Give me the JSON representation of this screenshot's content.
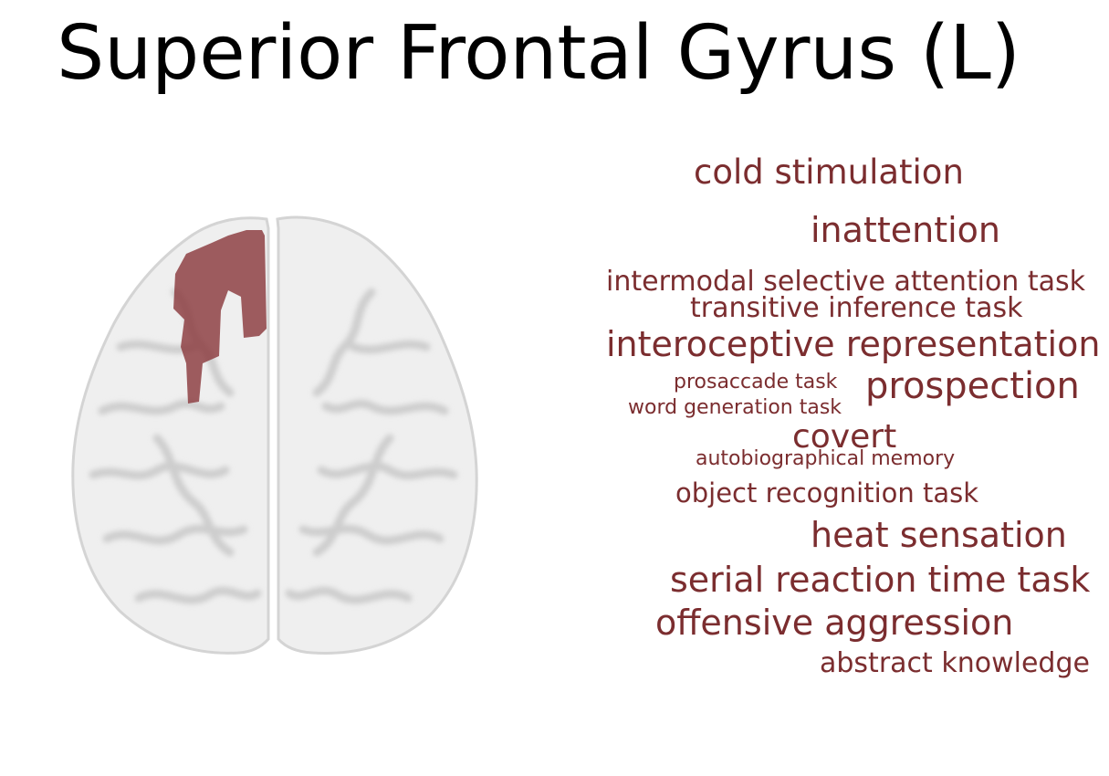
{
  "title": "Superior Frontal Gyrus (L)",
  "colors": {
    "accent": "#7b2d2f",
    "region": "#8b3a3e",
    "brain_base": "#e9e9e9"
  },
  "brain_image": {
    "view": "axial",
    "highlighted_region": "left superior frontal gyrus"
  },
  "terms": [
    {
      "text": "cold stimulation",
      "size": "large"
    },
    {
      "text": "inattention",
      "size": "large"
    },
    {
      "text": "intermodal selective attention task",
      "size": "medium"
    },
    {
      "text": "transitive inference task",
      "size": "medium"
    },
    {
      "text": "interoceptive representation",
      "size": "large"
    },
    {
      "text": "prosaccade task",
      "size": "small"
    },
    {
      "text": "prospection",
      "size": "large"
    },
    {
      "text": "word generation task",
      "size": "small"
    },
    {
      "text": "covert",
      "size": "large"
    },
    {
      "text": "autobiographical memory",
      "size": "small"
    },
    {
      "text": "object recognition task",
      "size": "medium"
    },
    {
      "text": "heat sensation",
      "size": "large"
    },
    {
      "text": "serial reaction time task",
      "size": "large"
    },
    {
      "text": "offensive aggression",
      "size": "large"
    },
    {
      "text": "abstract knowledge",
      "size": "medium"
    }
  ]
}
